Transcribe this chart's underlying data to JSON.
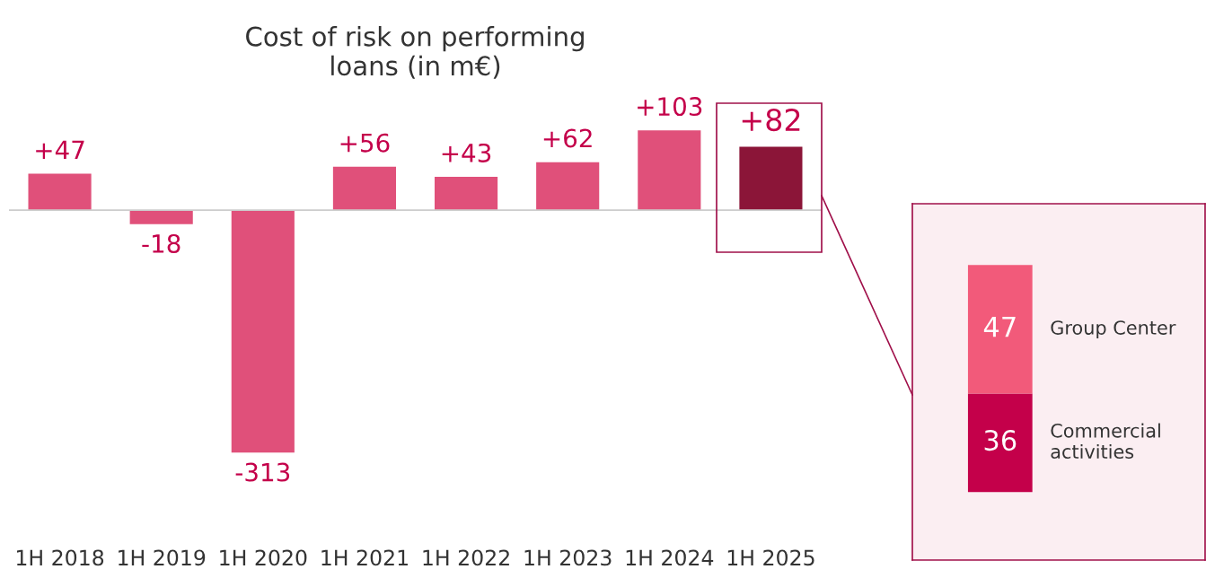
{
  "chart_data": [
    {
      "type": "bar",
      "title": "Cost of risk on performing\nloans (in m€)",
      "categories": [
        "1H 2018",
        "1H 2019",
        "1H 2020",
        "1H 2021",
        "1H 2022",
        "1H 2023",
        "1H 2024",
        "1H 2025"
      ],
      "values": [
        47,
        -18,
        -313,
        56,
        43,
        62,
        103,
        82
      ],
      "colors": [
        "#e0507a",
        "#e0507a",
        "#e0507a",
        "#e0507a",
        "#e0507a",
        "#e0507a",
        "#e0507a",
        "#8b1538"
      ],
      "value_labels": [
        "+47",
        "-18",
        "-313",
        "+56",
        "+43",
        "+62",
        "+103",
        "+82"
      ]
    },
    {
      "type": "bar",
      "stacked": true,
      "categories": [
        null
      ],
      "data_labels": true,
      "series": [
        {
          "name": "Commercial activities",
          "color": "#c4004a",
          "values": [
            36
          ]
        },
        {
          "name": "Group Center",
          "color": "#f25a7a",
          "values": [
            47
          ]
        }
      ]
    }
  ]
}
